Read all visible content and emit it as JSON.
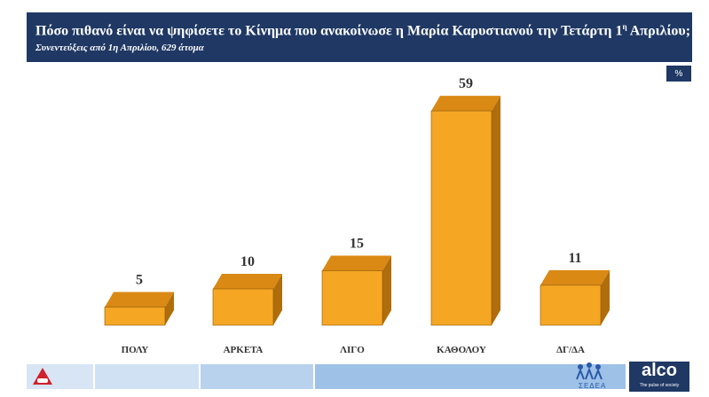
{
  "header": {
    "title": "Πόσο πιθανό είναι να ψηφίσετε το Κίνημα που ανακοίνωσε η Μαρία Καρυστιανού την Τετάρτη 1",
    "title_sup": "η",
    "title_end": " Απριλίου;",
    "subtitle": "Συνεντεύξεις από 1η Απριλίου, 629 άτομα"
  },
  "unit_badge": "%",
  "chart_data": {
    "type": "bar",
    "title": "Πόσο πιθανό είναι να ψηφίσετε το Κίνημα που ανακοίνωσε η Μαρία Καρυστιανού την Τετάρτη 1η Απριλίου;",
    "subtitle": "Συνεντεύξεις από 1η Απριλίου, 629 άτομα",
    "categories": [
      "ΠΟΛΥ",
      "ΑΡΚΕΤΑ",
      "ΛΙΓΟ",
      "ΚΑΘΟΛΟΥ",
      "ΔΓ/ΔΑ"
    ],
    "values": [
      5,
      10,
      15,
      59,
      11
    ],
    "unit": "%",
    "style": "3d-bar",
    "grid": false,
    "legend": "none",
    "ylim": [
      0,
      60
    ]
  },
  "branding": {
    "sedea_label": "ΣΕΔΕΑ",
    "alco_label": "alco",
    "alco_tagline": "The pulse of society"
  },
  "colors": {
    "header_bg": "#1f3864",
    "bar_front": "#f5a623",
    "bar_top": "#d98914",
    "bar_side": "#b06d0c",
    "label": "#333333",
    "footer_light": "#d7e5f5",
    "footer_mid": "#b6cfec",
    "footer_dark": "#9cbfe6"
  }
}
